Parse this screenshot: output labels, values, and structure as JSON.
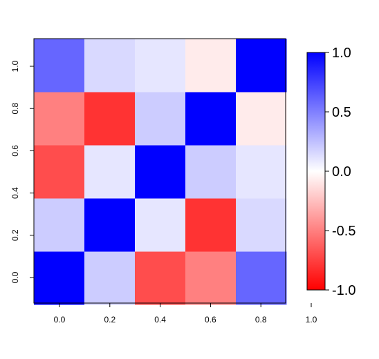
{
  "chart_data": {
    "type": "heatmap",
    "title": "",
    "xlabel": "",
    "ylabel": "",
    "x_tick_labels": [
      "0.0",
      "0.2",
      "0.4",
      "0.6",
      "0.8",
      "1.0"
    ],
    "y_tick_labels": [
      "0.0",
      "0.2",
      "0.4",
      "0.6",
      "0.8",
      "1.0"
    ],
    "rows_bottom_to_top": [
      [
        1.0,
        0.2,
        -0.7,
        -0.5,
        0.6
      ],
      [
        0.2,
        1.0,
        0.1,
        -0.8,
        0.15
      ],
      [
        -0.7,
        0.1,
        1.0,
        0.2,
        0.1
      ],
      [
        -0.5,
        -0.8,
        0.2,
        1.0,
        -0.08
      ],
      [
        0.6,
        0.15,
        0.1,
        -0.08,
        1.0
      ]
    ],
    "color_scale": {
      "min": -1.0,
      "max": 1.0,
      "low_color": "#ff0000",
      "mid_color": "#ffffff",
      "high_color": "#0000ff",
      "tick_labels": [
        "1.0",
        "0.5",
        "0.0",
        "-0.5",
        "-1.0"
      ],
      "tick_values": [
        1.0,
        0.5,
        0.0,
        -0.5,
        -1.0
      ]
    },
    "grid": false,
    "legend": "right"
  }
}
